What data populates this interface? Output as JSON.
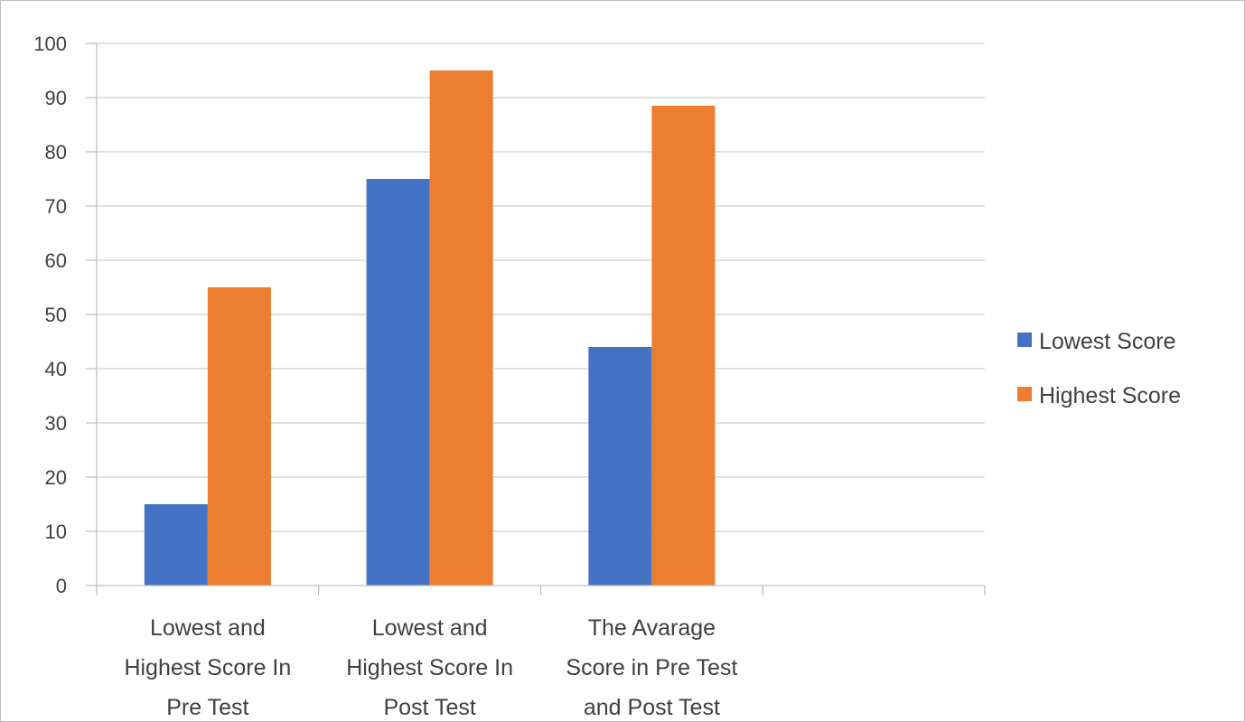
{
  "chart_data": {
    "type": "bar",
    "categories": [
      [
        "Lowest and",
        "Highest Score In",
        "Pre Test"
      ],
      [
        "Lowest and",
        "Highest Score In",
        "Post Test"
      ],
      [
        "The Avarage",
        "Score in Pre Test",
        "and Post Test"
      ],
      [
        ""
      ]
    ],
    "series": [
      {
        "name": "Lowest Score",
        "color": "#4472C4",
        "values": [
          15,
          75,
          44,
          null
        ]
      },
      {
        "name": "Highest Score",
        "color": "#ED7D31",
        "values": [
          55,
          95,
          88.5,
          null
        ]
      }
    ],
    "ylim": [
      0,
      100
    ],
    "yticks": [
      "0",
      "10",
      "20",
      "30",
      "40",
      "50",
      "60",
      "70",
      "80",
      "90",
      "100"
    ],
    "grid": true,
    "legend": "right",
    "title": "",
    "xlabel": "",
    "ylabel": ""
  }
}
